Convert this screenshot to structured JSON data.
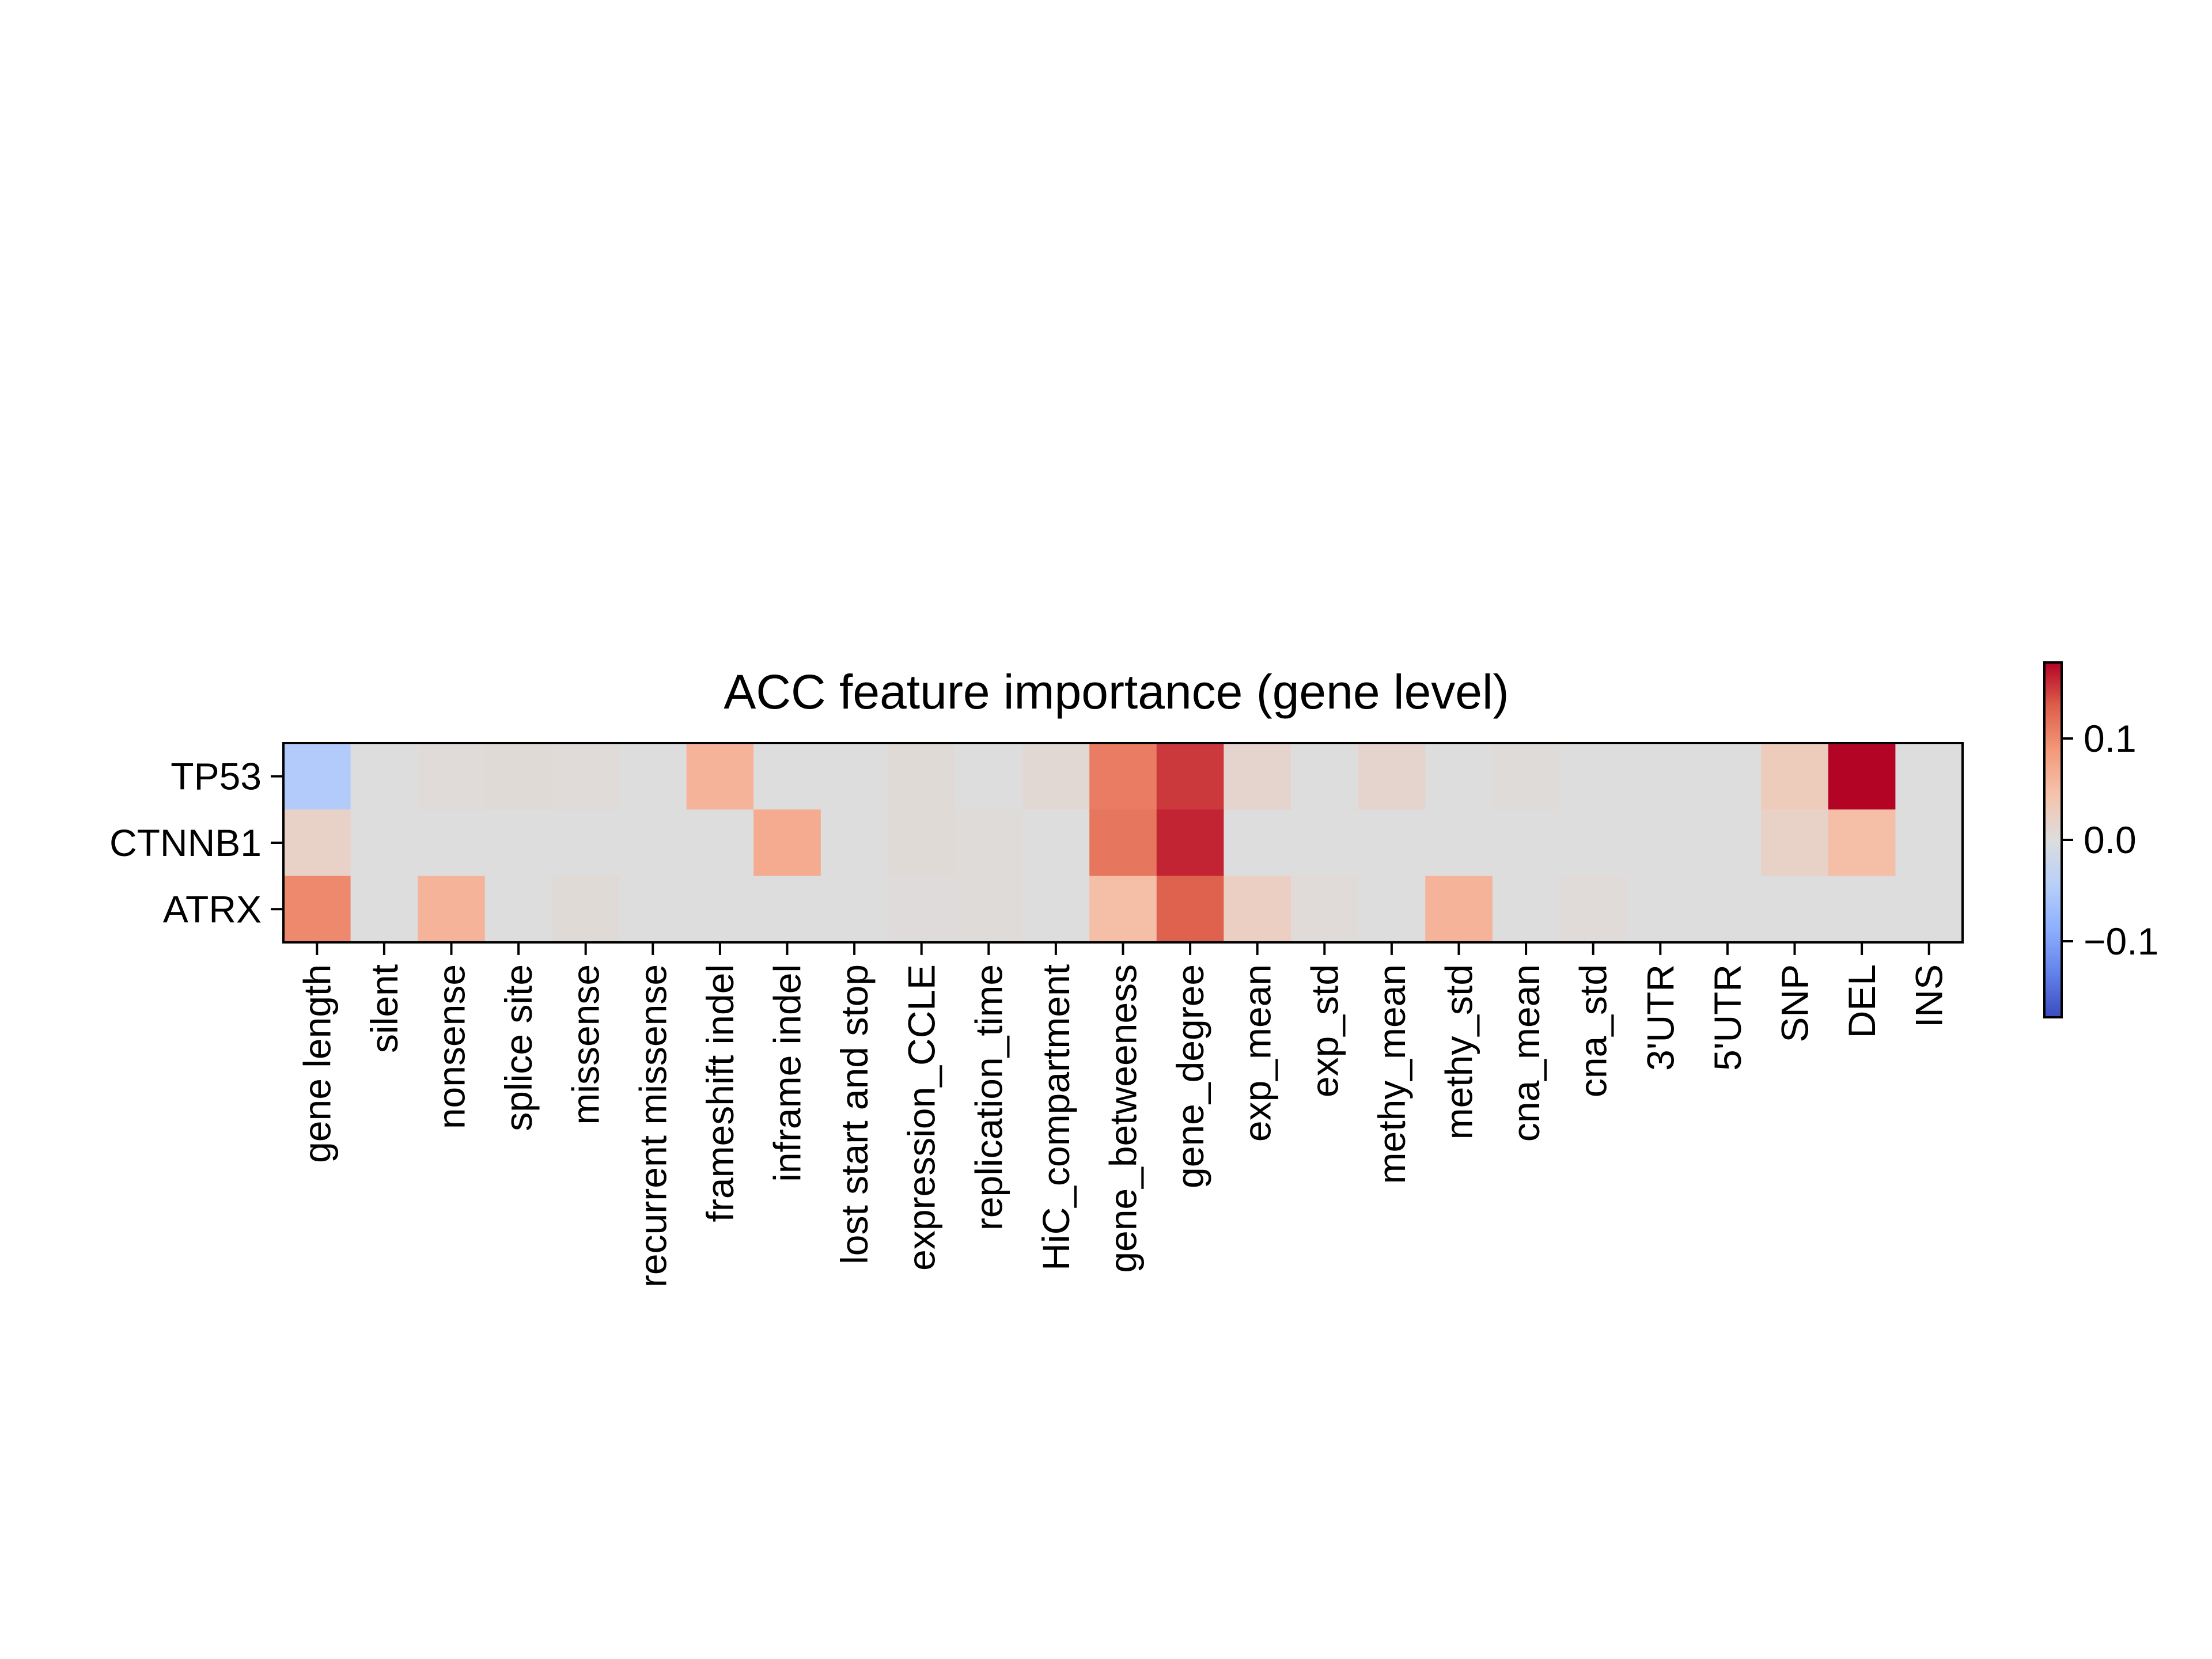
{
  "chart_data": {
    "type": "heatmap",
    "title": "ACC feature importance (gene level)",
    "xlabel": "",
    "ylabel": "",
    "rows": [
      "TP53",
      "CTNNB1",
      "ATRX"
    ],
    "columns": [
      "gene length",
      "silent",
      "nonsense",
      "splice site",
      "missense",
      "recurrent missense",
      "frameshift indel",
      "inframe indel",
      "lost start and stop",
      "expression_CCLE",
      "replication_time",
      "HiC_compartment",
      "gene_betweeness",
      "gene_degree",
      "exp_mean",
      "exp_std",
      "methy_mean",
      "methy_std",
      "cna_mean",
      "cna_std",
      "3'UTR",
      "5'UTR",
      "SNP",
      "DEL",
      "INS"
    ],
    "values": [
      [
        -0.05,
        0,
        0.005,
        0.006,
        0.005,
        0,
        0.06,
        0,
        0,
        0.006,
        0,
        0.008,
        0.11,
        0.15,
        0.015,
        0,
        0.015,
        0,
        0.004,
        0,
        0,
        0,
        0.03,
        0.175,
        0
      ],
      [
        0.02,
        0,
        0,
        0,
        0,
        0,
        0,
        0.07,
        0,
        0.006,
        0.004,
        0,
        0.115,
        0.16,
        0,
        0,
        0,
        0,
        0,
        0,
        0,
        0,
        0.02,
        0.05,
        0
      ],
      [
        0.1,
        0,
        0.06,
        0,
        0.006,
        0,
        0,
        0,
        0,
        0.003,
        0.004,
        0,
        0.05,
        0.13,
        0.025,
        0.005,
        0,
        0.06,
        0,
        0.005,
        0,
        0,
        0,
        0,
        0
      ]
    ],
    "colorbar": {
      "colormap": "coolwarm",
      "vmin": -0.175,
      "vmax": 0.175,
      "ticks": [
        0.1,
        0.0,
        -0.1
      ],
      "tick_labels": [
        "0.1",
        "0.0",
        "−0.1"
      ]
    }
  }
}
